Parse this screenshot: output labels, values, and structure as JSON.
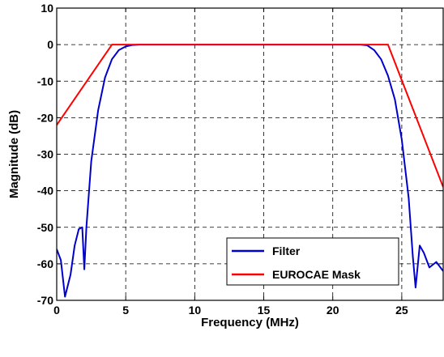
{
  "chart_data": {
    "type": "line",
    "xlabel": "Frequency (MHz)",
    "ylabel": "Magnitude (dB)",
    "xlim": [
      0,
      28
    ],
    "ylim": [
      -70,
      10
    ],
    "xticks": [
      0,
      5,
      10,
      15,
      20,
      25
    ],
    "yticks": [
      10,
      0,
      -10,
      -20,
      -30,
      -40,
      -50,
      -60,
      -70
    ],
    "grid": true,
    "legend_position": "lower-right",
    "series": [
      {
        "name": "Filter",
        "color": "#0000cc",
        "x": [
          0,
          0.3,
          0.6,
          1.0,
          1.3,
          1.6,
          1.85,
          2.0,
          2.15,
          2.5,
          3.0,
          3.5,
          4.0,
          4.5,
          5.0,
          5.5,
          6.0,
          8,
          10,
          12,
          14,
          16,
          18,
          20,
          22,
          22.5,
          23.0,
          23.5,
          24.0,
          24.5,
          25.0,
          25.5,
          25.8,
          26.0,
          26.3,
          26.6,
          27.0,
          27.5,
          28.0
        ],
        "y": [
          -56,
          -59,
          -69,
          -63,
          -55,
          -50.5,
          -50,
          -61.5,
          -50,
          -32,
          -18,
          -9,
          -4,
          -1.5,
          -0.5,
          -0.1,
          0,
          0,
          0,
          0,
          0,
          0,
          0,
          0,
          0,
          -0.2,
          -1.5,
          -4,
          -8.5,
          -15,
          -26,
          -42,
          -58,
          -66.5,
          -55,
          -57,
          -61,
          -59.5,
          -62
        ]
      },
      {
        "name": "EUROCAE Mask",
        "color": "#ff0000",
        "x": [
          0,
          4,
          24,
          28
        ],
        "y": [
          -22,
          0,
          0,
          -39
        ]
      }
    ]
  }
}
